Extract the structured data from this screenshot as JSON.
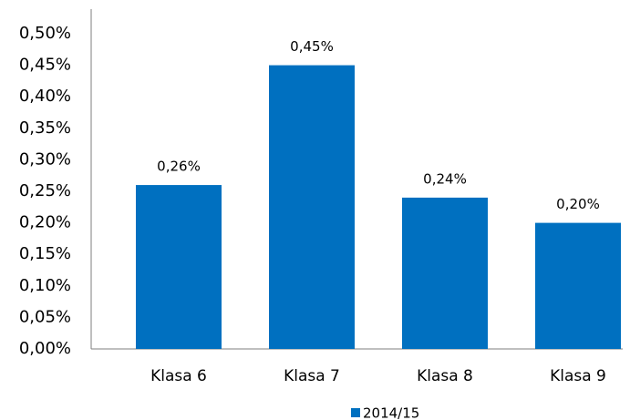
{
  "chart_data": {
    "type": "bar",
    "categories": [
      "Klasa 6",
      "Klasa 7",
      "Klasa 8",
      "Klasa 9"
    ],
    "series": [
      {
        "name": "2014/15",
        "color": "#0070c0",
        "values": [
          0.26,
          0.45,
          0.24,
          0.2
        ],
        "value_labels": [
          "0,26%",
          "0,45%",
          "0,24%",
          "0,20%"
        ]
      }
    ],
    "ylim": [
      0,
      0.5
    ],
    "yticks": [
      {
        "value": 0,
        "label": "0,00%"
      },
      {
        "value": 0.05,
        "label": "0,05%"
      },
      {
        "value": 0.1,
        "label": "0,10%"
      },
      {
        "value": 0.15,
        "label": "0,15%"
      },
      {
        "value": 0.2,
        "label": "0,20%"
      },
      {
        "value": 0.25,
        "label": "0,25%"
      },
      {
        "value": 0.3,
        "label": "0,30%"
      },
      {
        "value": 0.35,
        "label": "0,35%"
      },
      {
        "value": 0.4,
        "label": "0,40%"
      },
      {
        "value": 0.45,
        "label": "0,45%"
      },
      {
        "value": 0.5,
        "label": "0,50%"
      }
    ],
    "grid": false,
    "legend": "bottom"
  }
}
